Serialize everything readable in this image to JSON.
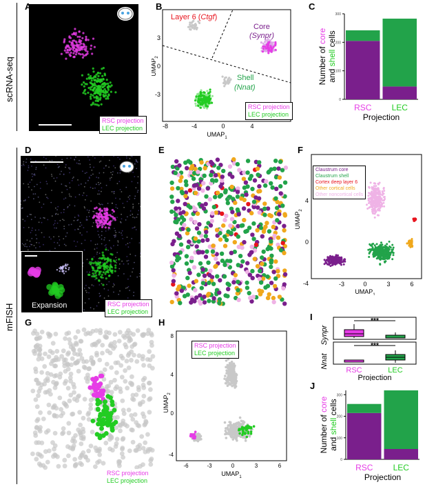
{
  "panels": {
    "A": "A",
    "B": "B",
    "C": "C",
    "D": "D",
    "E": "E",
    "F": "F",
    "G": "G",
    "H": "H",
    "I": "I",
    "J": "J"
  },
  "side_labels": {
    "top": "scRNA-seq",
    "bottom": "mFISH"
  },
  "legends": {
    "rsc": "RSC projection",
    "lec": "LEC projection"
  },
  "colors": {
    "magenta": "#e63ce6",
    "green": "#22cc22",
    "core": "#7a1f8c",
    "shell": "#22a34a",
    "deep6": "#e8141e",
    "other_cortical": "#f0a81c",
    "other_noncortical": "#efb3e6",
    "grey": "#c8c8c8"
  },
  "panelB": {
    "layer6_prefix": "Layer 6 (",
    "layer6_gene": "Ctgf",
    "layer6_suffix": ")",
    "core": "Core",
    "core_gene_paren": "(Synpr)",
    "shell": "Shell",
    "shell_gene_paren": "(Nnat)",
    "xlabel": "UMAP",
    "xlabel_sub": "1",
    "ylabel": "UMAP",
    "ylabel_sub": "2",
    "xticks": [
      "-8",
      "-4",
      "0",
      "4"
    ],
    "yticks": [
      "3",
      "0",
      "-3"
    ]
  },
  "panelD": {
    "expansion": "Expansion"
  },
  "panelF": {
    "legend": [
      "Claustrum core",
      "Claustrum shell",
      "Cortex deep layer 6",
      "Other cortical cells",
      "Other noncortical cells"
    ],
    "xlabel": "UMAP",
    "xlabel_sub": "1",
    "ylabel": "UMAP",
    "ylabel_sub": "2",
    "xticks": [
      "-3",
      "0",
      "3",
      "6"
    ],
    "yticks": [
      "4",
      "0",
      "-4"
    ]
  },
  "panelH": {
    "xlabel": "UMAP",
    "xlabel_sub": "1",
    "ylabel": "UMAP",
    "ylabel_sub": "2",
    "xticks": [
      "-6",
      "-3",
      "0",
      "3",
      "6"
    ],
    "yticks": [
      "8",
      "4",
      "0",
      "-4"
    ]
  },
  "panelI": {
    "gene1": "Synpr",
    "gene2": "Nnat",
    "sig": "***",
    "xlabel": "Projection",
    "cats": [
      "RSC",
      "LEC"
    ]
  },
  "chart_data": [
    {
      "id": "C",
      "type": "bar",
      "stacked": true,
      "categories": [
        "RSC",
        "LEC"
      ],
      "series": [
        {
          "name": "core",
          "values": [
            205,
            45
          ]
        },
        {
          "name": "shell",
          "values": [
            37,
            238
          ]
        }
      ],
      "ylim": [
        0,
        300
      ],
      "yticks": [
        "0",
        "100",
        "200",
        "300"
      ],
      "ylabel_parts": [
        "Number of ",
        "core",
        " and ",
        "shell",
        " cells"
      ],
      "xlabel": "Projection"
    },
    {
      "id": "J",
      "type": "bar",
      "stacked": true,
      "categories": [
        "RSC",
        "LEC"
      ],
      "series": [
        {
          "name": "core",
          "values": [
            215,
            48
          ]
        },
        {
          "name": "shell",
          "values": [
            42,
            272
          ]
        }
      ],
      "ylim": [
        0,
        320
      ],
      "yticks": [
        "0",
        "100",
        "200",
        "300"
      ],
      "ylabel_parts": [
        "Number of ",
        "core",
        " and ",
        "shell",
        " cells"
      ],
      "xlabel": "Projection"
    }
  ]
}
